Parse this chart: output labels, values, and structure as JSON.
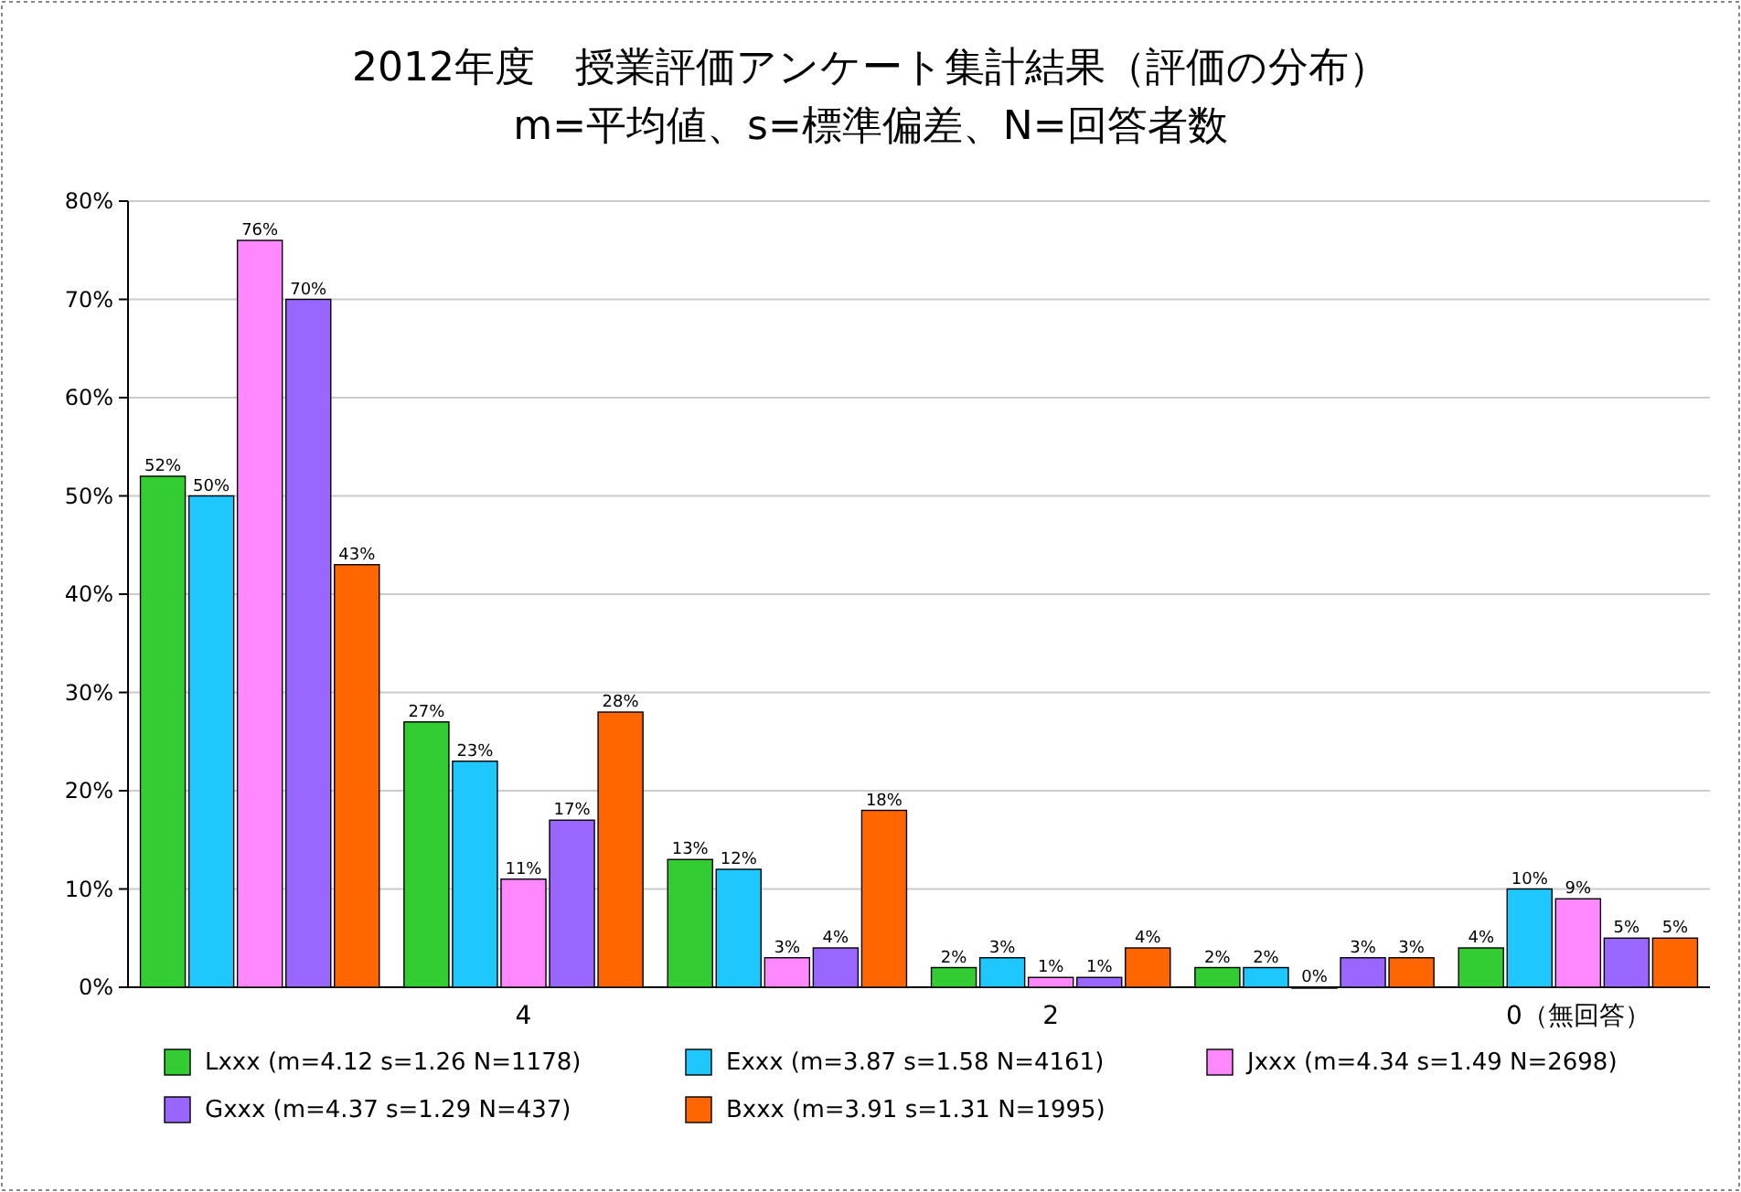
{
  "chart_data": {
    "type": "bar",
    "title": "2012年度　授業評価アンケート集計結果（評価の分布）",
    "subtitle": "m=平均値、s=標準偏差、N=回答者数",
    "categories": [
      null,
      "4",
      null,
      "2",
      null,
      "0（無回答）"
    ],
    "series": [
      {
        "name": "Lxxx (m=4.12 s=1.26 N=1178)",
        "color": "#33cc33",
        "values": [
          52,
          27,
          13,
          2,
          2,
          4
        ],
        "value_labels": [
          "52%",
          "27%",
          "13%",
          "2%",
          "2%",
          "4%"
        ]
      },
      {
        "name": "Exxx (m=3.87 s=1.58 N=4161)",
        "color": "#1ec8ff",
        "values": [
          50,
          23,
          12,
          3,
          2,
          10
        ],
        "value_labels": [
          "50%",
          "23%",
          "12%",
          "3%",
          "2%",
          "10%"
        ]
      },
      {
        "name": "Jxxx (m=4.34 s=1.49 N=2698)",
        "color": "#ff88ff",
        "values": [
          76,
          11,
          3,
          1,
          0,
          9
        ],
        "value_labels": [
          "76%",
          "11%",
          "3%",
          "1%",
          "0%",
          "9%"
        ]
      },
      {
        "name": "Gxxx (m=4.37 s=1.29 N=437)",
        "color": "#9966ff",
        "values": [
          70,
          17,
          4,
          1,
          3,
          5
        ],
        "value_labels": [
          "70%",
          "17%",
          "4%",
          "1%",
          "3%",
          "5%"
        ]
      },
      {
        "name": "Bxxx (m=3.91 s=1.31 N=1995)",
        "color": "#ff6600",
        "values": [
          43,
          28,
          18,
          4,
          3,
          5
        ],
        "value_labels": [
          "43%",
          "28%",
          "18%",
          "4%",
          "3%",
          "5%"
        ]
      }
    ],
    "ylim": [
      0,
      80
    ],
    "yticks": [
      {
        "value": 0,
        "label": "0%"
      },
      {
        "value": 10,
        "label": "10%"
      },
      {
        "value": 20,
        "label": "20%"
      },
      {
        "value": 30,
        "label": "30%"
      },
      {
        "value": 40,
        "label": "40%"
      },
      {
        "value": 50,
        "label": "50%"
      },
      {
        "value": 60,
        "label": "60%"
      },
      {
        "value": 70,
        "label": "70%"
      },
      {
        "value": 80,
        "label": "80%"
      }
    ],
    "grid": "y",
    "legend": "bottom"
  }
}
